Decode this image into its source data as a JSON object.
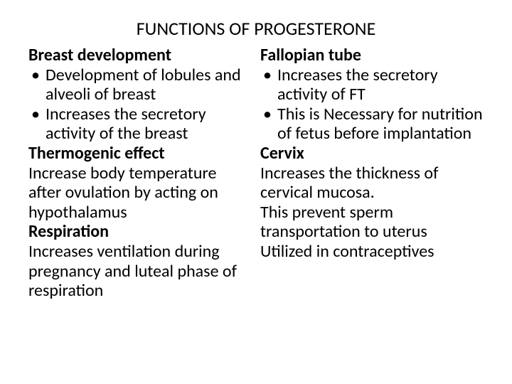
{
  "title": "FUNCTIONS OF PROGESTERONE",
  "left": {
    "h1": "Breast development",
    "b1": "Development of lobules and alveoli of breast",
    "b2": "Increases the secretory activity of the breast",
    "h2": "Thermogenic effect",
    "p1": "Increase body temperature after ovulation by acting on hypothalamus",
    "h3": "Respiration",
    "p2": "Increases ventilation during pregnancy and luteal phase of respiration"
  },
  "right": {
    "h1": "Fallopian tube",
    "b1": "Increases the secretory activity of FT",
    "b2": "This is Necessary for nutrition of fetus before implantation",
    "h2": "Cervix",
    "p1": "Increases the thickness of cervical mucosa.",
    "p2": "This prevent sperm transportation to uterus",
    "p3": "Utilized in contraceptives"
  }
}
